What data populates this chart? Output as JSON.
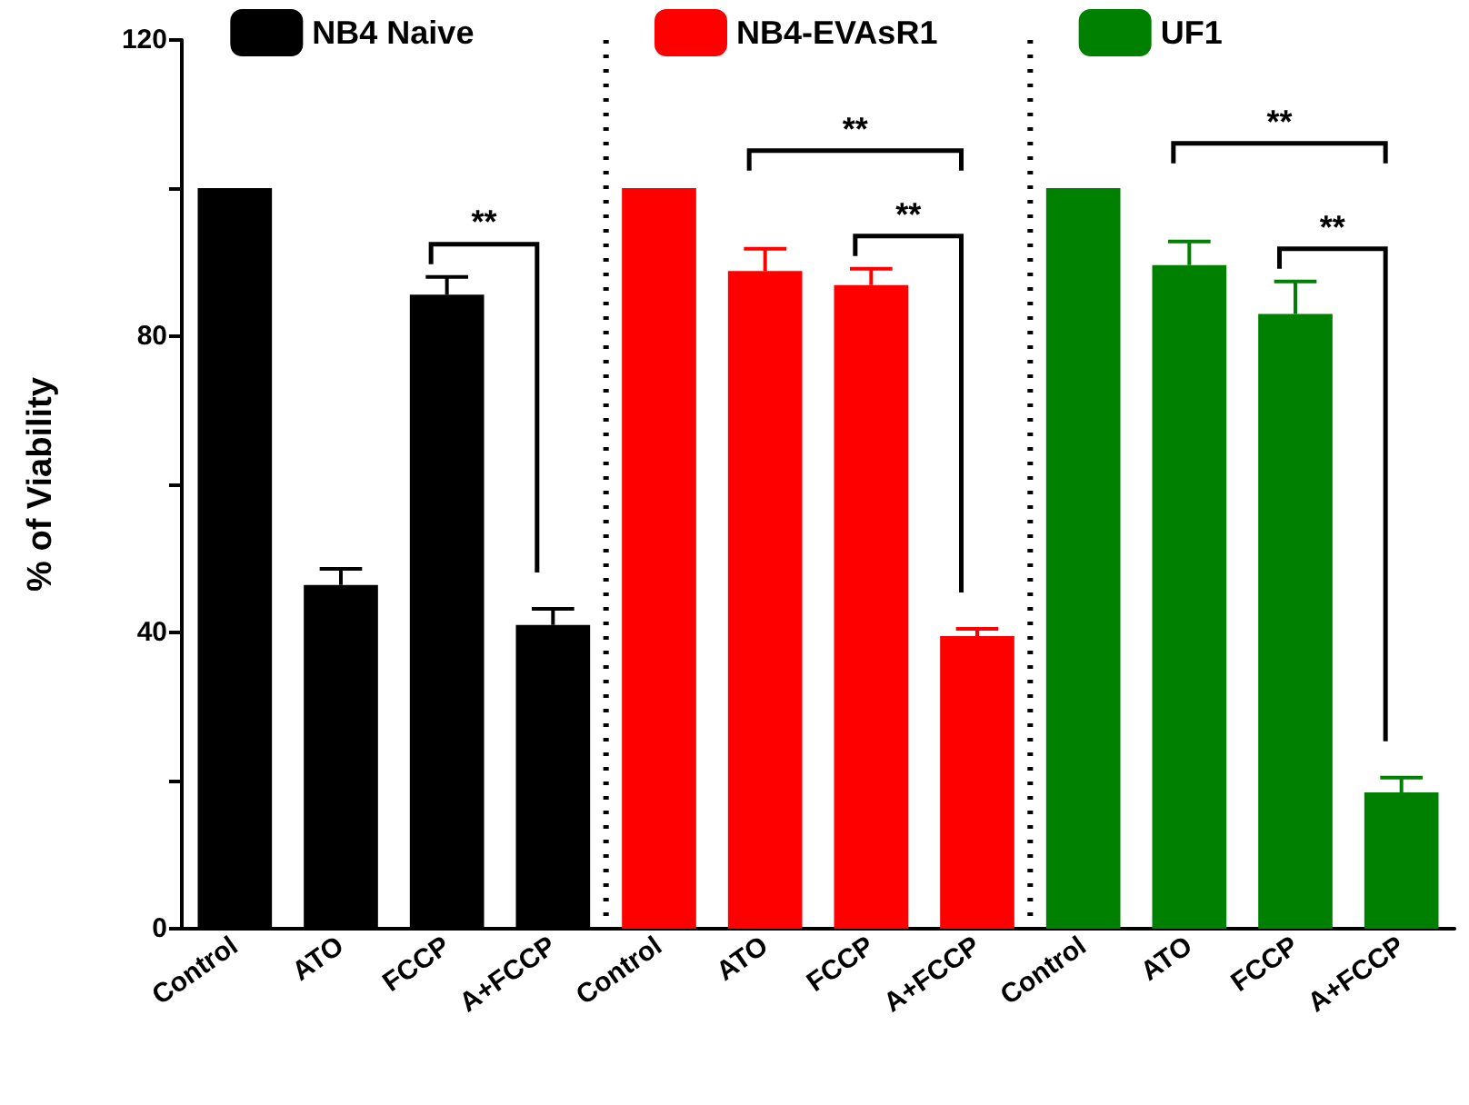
{
  "chart_data": {
    "type": "bar",
    "ylabel": "% of Viability",
    "categories": [
      "Control",
      "ATO",
      "FCCP",
      "A+FCCP",
      "Control",
      "ATO",
      "FCCP",
      "A+FCCP",
      "Control",
      "ATO",
      "FCCP",
      "A+FCCP"
    ],
    "series": [
      {
        "name": "NB4 Naive",
        "color": "#000000",
        "values": [
          100,
          46.4,
          85.6,
          41,
          null,
          null,
          null,
          null,
          null,
          null,
          null,
          null
        ],
        "errors": [
          null,
          [
            46.4,
            48.6
          ],
          [
            85.6,
            88
          ],
          [
            41,
            43.2
          ],
          null,
          null,
          null,
          null,
          null,
          null,
          null,
          null
        ]
      },
      {
        "name": "NB4-EVAsR1",
        "color": "#ff0000",
        "values": [
          null,
          null,
          null,
          null,
          100,
          88.8,
          86.9,
          39.5,
          null,
          null,
          null,
          null
        ],
        "errors": [
          null,
          null,
          null,
          null,
          null,
          [
            88.8,
            91.8
          ],
          [
            86.9,
            89.1
          ],
          [
            39.5,
            40.5
          ],
          null,
          null,
          null,
          null
        ]
      },
      {
        "name": "UF1",
        "color": "#008000",
        "values": [
          null,
          null,
          null,
          null,
          null,
          null,
          null,
          null,
          100,
          89.6,
          83,
          18.4
        ],
        "errors": [
          null,
          null,
          null,
          null,
          null,
          null,
          null,
          null,
          null,
          [
            89.6,
            92.8
          ],
          [
            83,
            87.4
          ],
          [
            18.4,
            20.4
          ]
        ]
      }
    ],
    "ylim": [
      0,
      120
    ],
    "yticks": [
      0,
      {
        "value": 20,
        "label": null
      },
      40,
      {
        "value": 60,
        "label": null
      },
      80,
      {
        "value": 100,
        "label": null
      },
      120
    ],
    "annotations": [
      "**",
      "**",
      "**",
      "**",
      "**"
    ],
    "legend": "top",
    "grid": false
  }
}
